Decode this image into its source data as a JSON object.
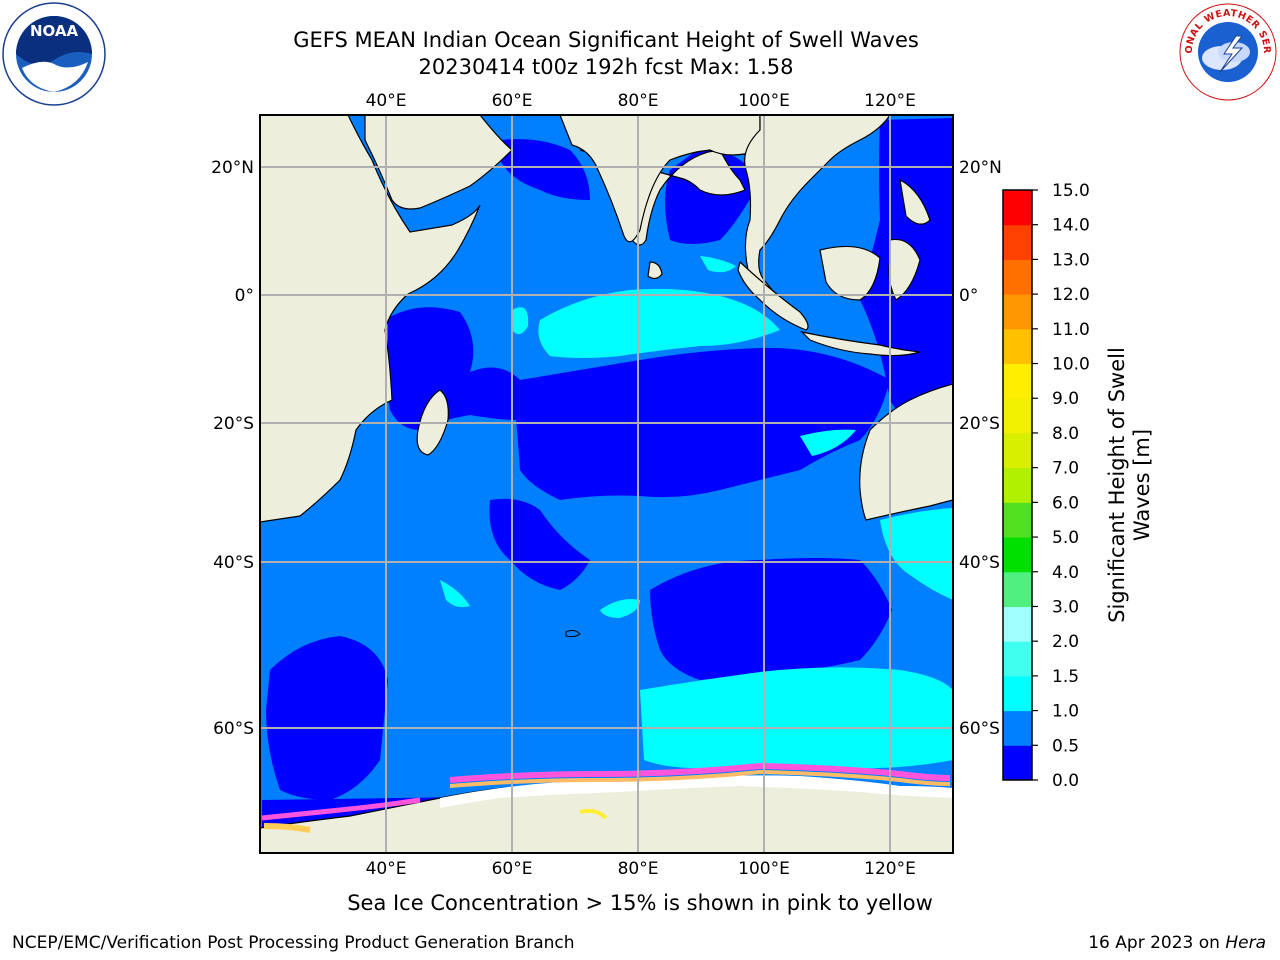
{
  "header": {
    "title_line1": "GEFS MEAN Indian Ocean Significant Height of Swell Waves",
    "title_line2": "20230414 t00z 192h fcst   Max: 1.58"
  },
  "logos": {
    "noaa": {
      "text": "NOAA",
      "icon": "noaa-seal-icon"
    },
    "nws": {
      "text": "NATIONAL WEATHER SERVICE",
      "icon": "nws-seal-icon"
    }
  },
  "map": {
    "lon_ticks": [
      "40°E",
      "60°E",
      "80°E",
      "100°E",
      "120°E"
    ],
    "lat_ticks": [
      "20°N",
      "0°",
      "20°S",
      "40°S",
      "60°S"
    ],
    "lon_values": [
      40,
      60,
      80,
      100,
      120
    ],
    "lat_values": [
      20,
      0,
      -20,
      -40,
      -60
    ],
    "extent": {
      "lon_min": 20,
      "lon_max": 130,
      "lat_min": -72,
      "lat_max": 28
    },
    "colors": {
      "land": "#eeeedd",
      "grid": "#b0b0b0",
      "sea_ice": "#ffffff"
    }
  },
  "colorbar": {
    "title": "Significant Height of Swell Waves [m]",
    "tick_labels": [
      "0.0",
      "0.5",
      "1.0",
      "1.5",
      "2.0",
      "3.0",
      "4.0",
      "5.0",
      "6.0",
      "7.0",
      "8.0",
      "9.0",
      "10.0",
      "11.0",
      "12.0",
      "13.0",
      "14.0",
      "15.0"
    ],
    "bins": [
      {
        "from": 0.0,
        "to": 0.5,
        "color": "#0000ff"
      },
      {
        "from": 0.5,
        "to": 1.0,
        "color": "#0080ff"
      },
      {
        "from": 1.0,
        "to": 1.5,
        "color": "#00ffff"
      },
      {
        "from": 1.5,
        "to": 2.0,
        "color": "#40ffee"
      },
      {
        "from": 2.0,
        "to": 3.0,
        "color": "#a0ffff"
      },
      {
        "from": 3.0,
        "to": 4.0,
        "color": "#50f080"
      },
      {
        "from": 4.0,
        "to": 5.0,
        "color": "#00e000"
      },
      {
        "from": 5.0,
        "to": 6.0,
        "color": "#50e020"
      },
      {
        "from": 6.0,
        "to": 7.0,
        "color": "#b0f000"
      },
      {
        "from": 7.0,
        "to": 8.0,
        "color": "#d8f000"
      },
      {
        "from": 8.0,
        "to": 9.0,
        "color": "#f0f000"
      },
      {
        "from": 9.0,
        "to": 10.0,
        "color": "#ffee00"
      },
      {
        "from": 10.0,
        "to": 11.0,
        "color": "#ffc000"
      },
      {
        "from": 11.0,
        "to": 12.0,
        "color": "#ff9800"
      },
      {
        "from": 12.0,
        "to": 13.0,
        "color": "#ff7000"
      },
      {
        "from": 13.0,
        "to": 14.0,
        "color": "#ff4000"
      },
      {
        "from": 14.0,
        "to": 15.0,
        "color": "#ff0000"
      }
    ]
  },
  "notes": {
    "ice": "Sea Ice Concentration > 15% is shown in pink to yellow"
  },
  "footer": {
    "left": "NCEP/EMC/Verification Post Processing Product Generation Branch",
    "right_date": "16 Apr 2023 on",
    "right_host": "Hera"
  }
}
